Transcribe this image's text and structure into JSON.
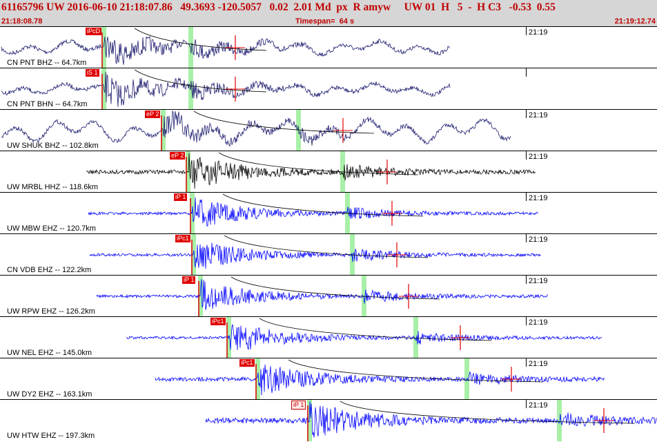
{
  "header": {
    "title": "61165796 UW 2016-06-10 21:18:07.86   49.3693 -120.5057   0.02  2.01 Md  px  R amyw     UW 01  H   5  -  H C3   -0.53  0.55",
    "time_start": "21:18:08.78",
    "timespan": "Timespan=  64 s",
    "time_end": "21:19:12.74"
  },
  "colors": {
    "title_red": "#c00000",
    "pick_red": "#e00000",
    "window_green": "#a8f0a8",
    "trace_navy": "#1a1a6e",
    "trace_black": "#000000",
    "trace_blue": "#0000ff"
  },
  "traces": [
    {
      "label": "CN PNT BHZ -- 64.7km",
      "minute": "21:19",
      "pick": "iPcD",
      "color": "navy",
      "hollow": false
    },
    {
      "label": "CN PNT BHN -- 64.7km",
      "minute": "",
      "pick": "iS 1",
      "color": "navy",
      "hollow": false
    },
    {
      "label": "UW SHUK BHZ -- 102.8km",
      "minute": "21:19",
      "pick": "eP 2",
      "color": "navy",
      "hollow": false
    },
    {
      "label": "UW MRBL HHZ -- 118.6km",
      "minute": "21:19",
      "pick": "eP 2",
      "color": "black",
      "hollow": false
    },
    {
      "label": "UW MBW EHZ -- 120.7km",
      "minute": "21:19",
      "pick": "iP 1",
      "color": "blue",
      "hollow": false
    },
    {
      "label": "CN VDB EHZ -- 122.2km",
      "minute": "21:19",
      "pick": "iPc1",
      "color": "blue",
      "hollow": false
    },
    {
      "label": "UW RPW EHZ -- 126.2km",
      "minute": "21:19",
      "pick": "iP 1",
      "color": "blue",
      "hollow": false
    },
    {
      "label": "UW NEL EHZ -- 145.0km",
      "minute": "21:19",
      "pick": "iPc1",
      "color": "blue",
      "hollow": false
    },
    {
      "label": "UW DY2 EHZ -- 163.1km",
      "minute": "21:19",
      "pick": "iPc1",
      "color": "blue",
      "hollow": false
    },
    {
      "label": "UW HTW EHZ -- 197.3km",
      "minute": "21:19",
      "pick": "iP 1",
      "color": "blue",
      "hollow": true
    }
  ]
}
